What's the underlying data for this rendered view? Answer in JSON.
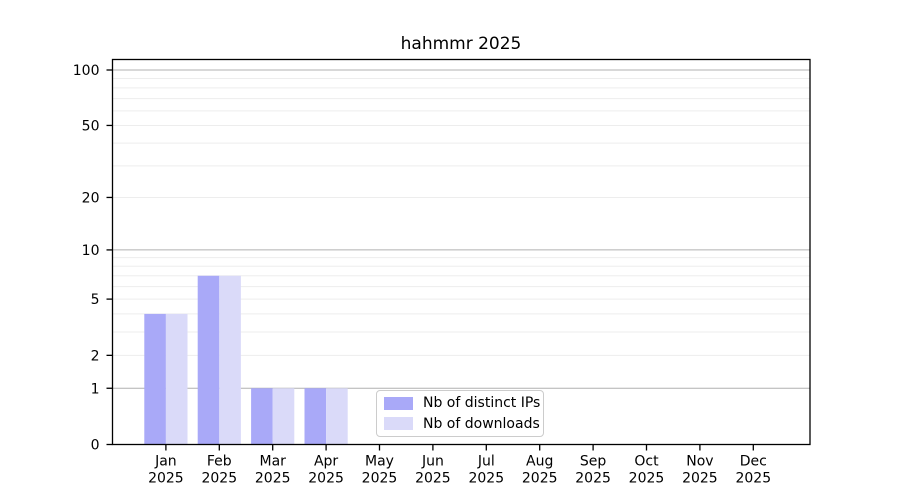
{
  "chart_data": {
    "type": "bar",
    "title": "hahmmr 2025",
    "categories": [
      "Jan 2025",
      "Feb 2025",
      "Mar 2025",
      "Apr 2025",
      "May 2025",
      "Jun 2025",
      "Jul 2025",
      "Aug 2025",
      "Sep 2025",
      "Oct 2025",
      "Nov 2025",
      "Dec 2025"
    ],
    "series": [
      {
        "name": "Nb of distinct IPs",
        "color": "#a9a9f8",
        "values": [
          4,
          7,
          1,
          1,
          0,
          0,
          0,
          0,
          0,
          0,
          0,
          0
        ]
      },
      {
        "name": "Nb of downloads",
        "color": "#dadaf9",
        "values": [
          4,
          7,
          1,
          1,
          0,
          0,
          0,
          0,
          0,
          0,
          0,
          0
        ]
      }
    ],
    "yscale": "log10(1+value)",
    "ylim": [
      0,
      100
    ],
    "yticks": [
      0,
      1,
      2,
      5,
      10,
      20,
      50,
      100
    ],
    "grid": {
      "major_lines": [
        1,
        10,
        100
      ],
      "minor_lines": [
        2,
        3,
        4,
        5,
        6,
        7,
        8,
        9,
        20,
        30,
        40,
        50,
        60,
        70,
        80,
        90
      ]
    },
    "legend_position": "inside-bottom-center"
  },
  "colors": {
    "background": "#ffffff",
    "bar_distinct_ips": "#a9a9f8",
    "bar_downloads": "#dadaf9",
    "grid_major": "#b0b0b0",
    "grid_minor": "#ededed",
    "spine": "#000000",
    "legend_border": "#cccccc",
    "text": "#000000"
  }
}
